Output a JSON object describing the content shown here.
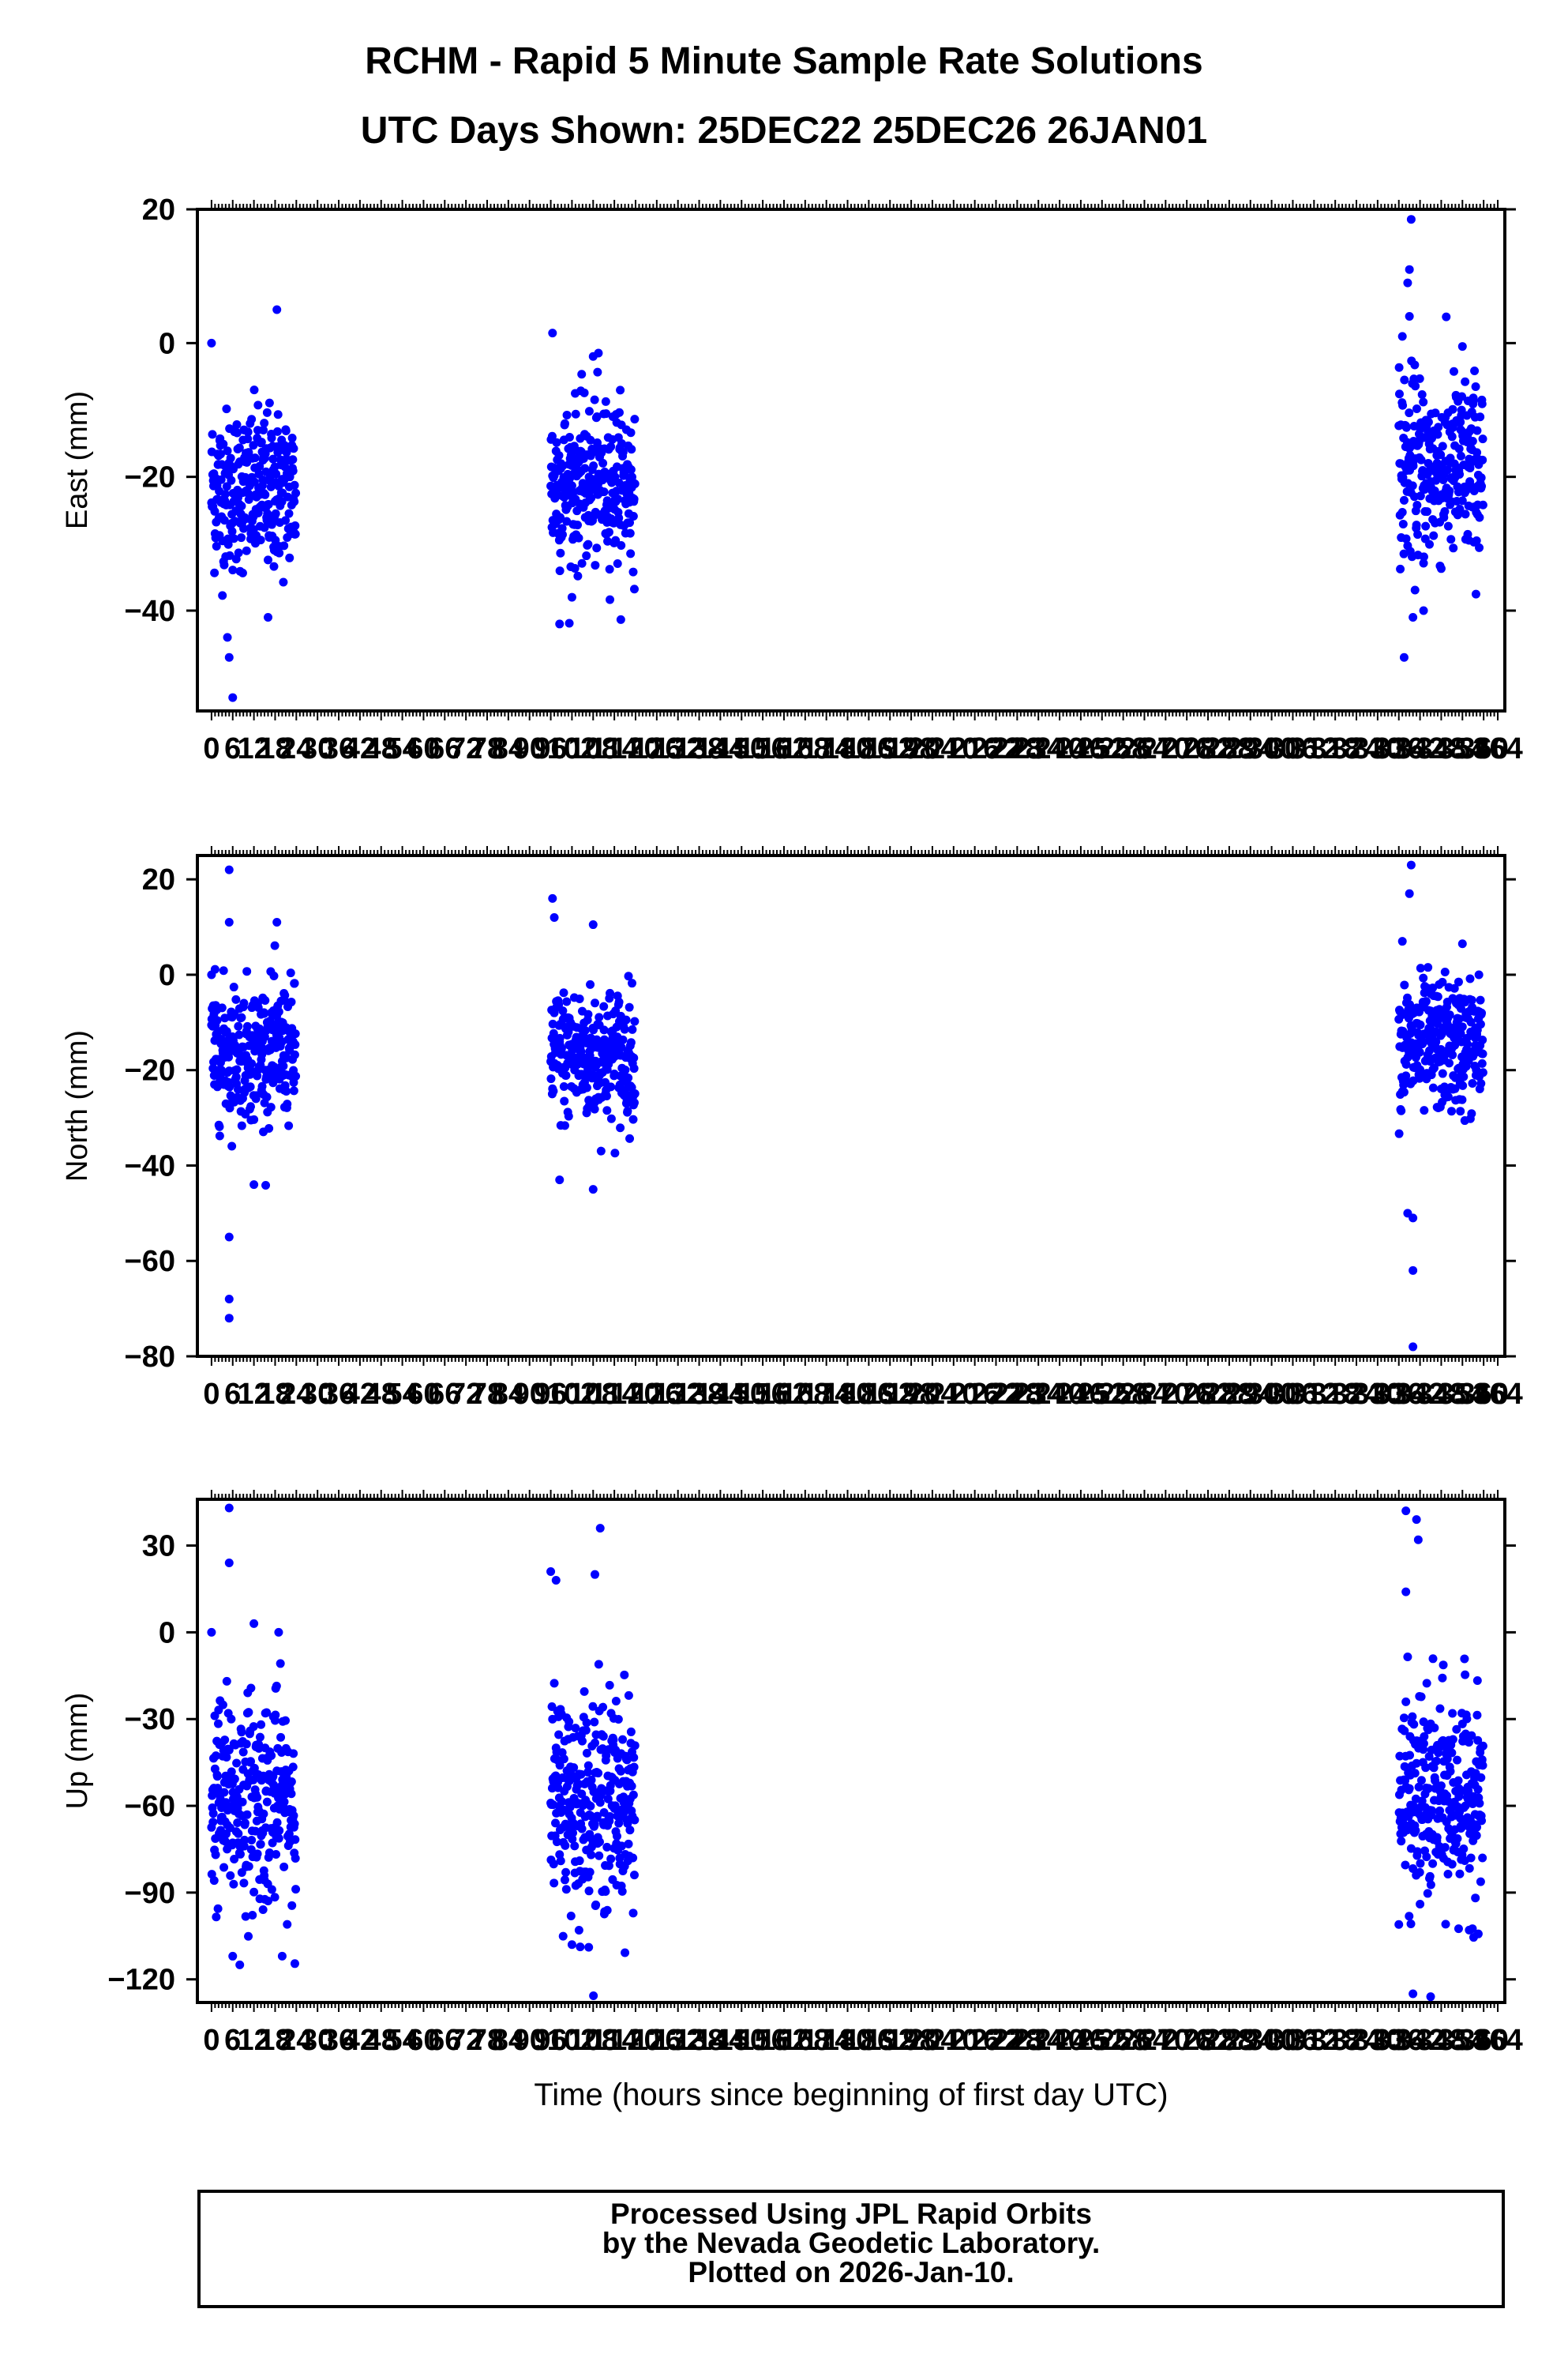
{
  "title": "RCHM - Rapid 5 Minute Sample Rate Solutions",
  "subtitle": "UTC Days Shown:  25DEC22 25DEC26 26JAN01",
  "footer": {
    "line1": "Processed Using JPL Rapid Orbits",
    "line2": "by the Nevada Geodetic Laboratory.",
    "line3": "Plotted on 2026-Jan-10."
  },
  "colors": {
    "points": "#0000ff",
    "axes": "#000000"
  },
  "chart_data": [
    {
      "type": "scatter",
      "ylabel": "East (mm)",
      "xlabel": "",
      "xlim": [
        -4,
        366
      ],
      "ylim": [
        -55,
        20
      ],
      "yticks": [
        20,
        0,
        -20,
        -40
      ],
      "xticks": [
        0,
        6,
        12,
        18,
        24,
        30,
        36,
        42,
        48,
        54,
        60,
        66,
        72,
        78,
        84,
        90,
        96,
        102,
        108,
        114,
        120,
        126,
        132,
        138,
        144,
        150,
        156,
        162,
        168,
        174,
        180,
        186,
        192,
        198,
        204,
        210,
        216,
        222,
        228,
        234,
        240,
        246,
        252,
        258,
        264,
        270,
        276,
        282,
        288,
        294,
        300,
        306,
        312,
        318,
        324,
        330,
        336,
        342,
        348,
        354,
        360,
        364
      ],
      "grid": false,
      "clusters": [
        {
          "x_range": [
            0,
            23.9
          ],
          "center": -22,
          "spread": 6,
          "outliers": [
            [
              0,
              0
            ],
            [
              18.5,
              5
            ],
            [
              6,
              -53
            ],
            [
              5,
              -47
            ],
            [
              4.5,
              -44
            ],
            [
              16,
              -41
            ]
          ]
        },
        {
          "x_range": [
            96,
            119.9
          ],
          "center": -21,
          "spread": 6,
          "outliers": [
            [
              96.5,
              1.5
            ],
            [
              98.5,
              -42
            ],
            [
              102,
              -38
            ],
            [
              108,
              -2
            ],
            [
              109.5,
              -1.5
            ]
          ]
        },
        {
          "x_range": [
            336,
            359.9
          ],
          "center": -19,
          "spread": 7,
          "outliers": [
            [
              339.5,
              18.5
            ],
            [
              339,
              11
            ],
            [
              338.5,
              9
            ],
            [
              339,
              4
            ],
            [
              337,
              1
            ],
            [
              354,
              -0.5
            ],
            [
              337.5,
              -47
            ],
            [
              340,
              -41
            ],
            [
              343,
              -40
            ]
          ]
        }
      ]
    },
    {
      "type": "scatter",
      "ylabel": "North (mm)",
      "xlabel": "",
      "xlim": [
        -4,
        366
      ],
      "ylim": [
        -80,
        25
      ],
      "yticks": [
        20,
        0,
        -20,
        -40,
        -60,
        -80
      ],
      "xticks": [
        0,
        6,
        12,
        18,
        24,
        30,
        36,
        42,
        48,
        54,
        60,
        66,
        72,
        78,
        84,
        90,
        96,
        102,
        108,
        114,
        120,
        126,
        132,
        138,
        144,
        150,
        156,
        162,
        168,
        174,
        180,
        186,
        192,
        198,
        204,
        210,
        216,
        222,
        228,
        234,
        240,
        246,
        252,
        258,
        264,
        270,
        276,
        282,
        288,
        294,
        300,
        306,
        312,
        318,
        324,
        330,
        336,
        342,
        348,
        354,
        360,
        364
      ],
      "grid": false,
      "clusters": [
        {
          "x_range": [
            0,
            23.9
          ],
          "center": -16,
          "spread": 7,
          "outliers": [
            [
              5,
              22
            ],
            [
              5,
              11
            ],
            [
              18.5,
              11
            ],
            [
              0,
              0
            ],
            [
              5,
              -55
            ],
            [
              5,
              -68
            ],
            [
              5,
              -72
            ],
            [
              12,
              -44
            ]
          ]
        },
        {
          "x_range": [
            96,
            119.9
          ],
          "center": -17,
          "spread": 7,
          "outliers": [
            [
              96.5,
              16
            ],
            [
              97,
              12
            ],
            [
              108,
              10.5
            ],
            [
              98.5,
              -43
            ],
            [
              108,
              -45
            ]
          ]
        },
        {
          "x_range": [
            336,
            359.9
          ],
          "center": -15,
          "spread": 7,
          "outliers": [
            [
              339.5,
              23
            ],
            [
              339,
              17
            ],
            [
              337,
              7
            ],
            [
              338.5,
              -50
            ],
            [
              340,
              -51
            ],
            [
              340,
              -62
            ],
            [
              340,
              -78
            ],
            [
              354,
              6.5
            ]
          ]
        }
      ]
    },
    {
      "type": "scatter",
      "ylabel": "Up (mm)",
      "xlabel": "Time (hours since beginning of first day UTC)",
      "xlim": [
        -4,
        366
      ],
      "ylim": [
        -128,
        46
      ],
      "yticks": [
        30,
        0,
        -30,
        -60,
        -90,
        -120
      ],
      "xticks": [
        0,
        6,
        12,
        18,
        24,
        30,
        36,
        42,
        48,
        54,
        60,
        66,
        72,
        78,
        84,
        90,
        96,
        102,
        108,
        114,
        120,
        126,
        132,
        138,
        144,
        150,
        156,
        162,
        168,
        174,
        180,
        186,
        192,
        198,
        204,
        210,
        216,
        222,
        228,
        234,
        240,
        246,
        252,
        258,
        264,
        270,
        276,
        282,
        288,
        294,
        300,
        306,
        312,
        318,
        324,
        330,
        336,
        342,
        348,
        354,
        360,
        364
      ],
      "grid": false,
      "clusters": [
        {
          "x_range": [
            0,
            23.9
          ],
          "center": -58,
          "spread": 18,
          "outliers": [
            [
              5,
              43
            ],
            [
              5,
              24
            ],
            [
              0,
              0
            ],
            [
              12,
              3
            ],
            [
              6,
              -112
            ],
            [
              8,
              -115
            ],
            [
              19,
              0
            ]
          ]
        },
        {
          "x_range": [
            96,
            119.9
          ],
          "center": -58,
          "spread": 18,
          "outliers": [
            [
              96,
              21
            ],
            [
              97.5,
              18
            ],
            [
              110,
              36
            ],
            [
              108.5,
              20
            ],
            [
              102,
              -108
            ],
            [
              104,
              -103
            ]
          ]
        },
        {
          "x_range": [
            336,
            359.9
          ],
          "center": -58,
          "spread": 18,
          "outliers": [
            [
              338,
              42
            ],
            [
              341,
              39
            ],
            [
              341.5,
              32
            ],
            [
              338,
              14
            ],
            [
              340,
              -125
            ],
            [
              345,
              -126
            ]
          ]
        }
      ]
    }
  ]
}
